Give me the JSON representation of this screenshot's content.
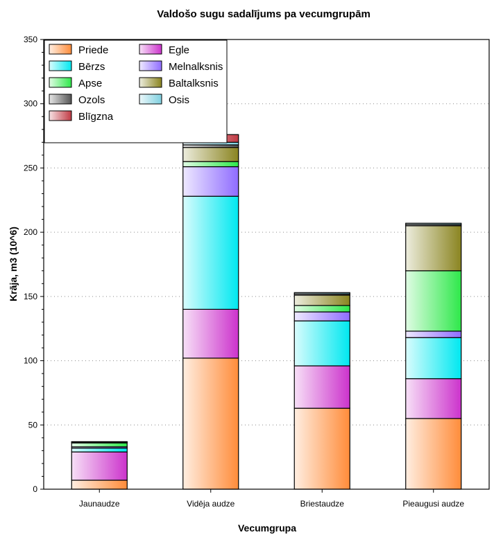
{
  "chart_data": {
    "type": "bar",
    "stacked": true,
    "title": "Valdošo sugu sadalījums pa vecumgrupām",
    "xlabel": "Vecumgrupa",
    "ylabel": "Krāja, m3 (10^6)",
    "ylim": [
      0,
      350
    ],
    "yticks": [
      0,
      50,
      100,
      150,
      200,
      250,
      300,
      350
    ],
    "grid": "dotted horizontal",
    "legend_position": "top-left",
    "categories": [
      "Jaunaudze",
      "Vidēja audze",
      "Briestaudze",
      "Pieaugusi audze"
    ],
    "series": [
      {
        "name": "Priede",
        "color": "#ff8c3a",
        "values": [
          7,
          102,
          63,
          55
        ]
      },
      {
        "name": "Egle",
        "color": "#cc33cc",
        "values": [
          22,
          38,
          33,
          31
        ]
      },
      {
        "name": "Bērzs",
        "color": "#00e8f0",
        "values": [
          3,
          88,
          35,
          32
        ]
      },
      {
        "name": "Melnalksnis",
        "color": "#8f6cff",
        "values": [
          1,
          23,
          7,
          5
        ]
      },
      {
        "name": "Apse",
        "color": "#2ee84a",
        "values": [
          3,
          4,
          5,
          47
        ]
      },
      {
        "name": "Baltalksnis",
        "color": "#8a8420",
        "values": [
          0.5,
          11,
          8,
          35
        ]
      },
      {
        "name": "Ozols",
        "color": "#555555",
        "values": [
          0.3,
          2,
          1,
          1
        ]
      },
      {
        "name": "Osis",
        "color": "#7fd0e0",
        "values": [
          0.2,
          2,
          1,
          1
        ]
      },
      {
        "name": "Blīgzna",
        "color": "#c03a44",
        "values": [
          0,
          6,
          0,
          0
        ]
      }
    ]
  },
  "legend_order": [
    "Priede",
    "Egle",
    "Bērzs",
    "Melnalksnis",
    "Apse",
    "Baltalksnis",
    "Ozols",
    "Osis",
    "Blīgzna"
  ]
}
